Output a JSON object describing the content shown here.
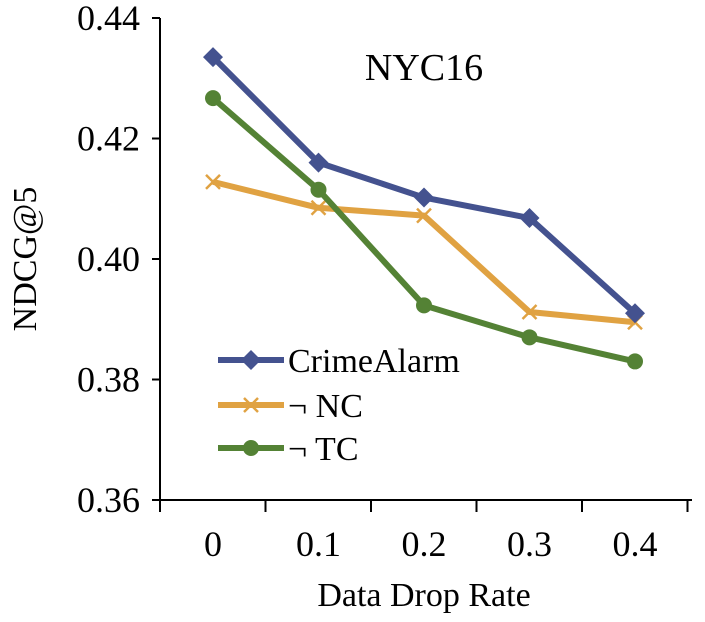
{
  "chart_data": {
    "type": "line",
    "title": "NYC16",
    "xlabel": "Data Drop Rate",
    "ylabel": "NDCG@5",
    "x": [
      0,
      0.1,
      0.2,
      0.3,
      0.4
    ],
    "x_tick_labels": [
      "0",
      "0.1",
      "0.2",
      "0.3",
      "0.4"
    ],
    "ylim": [
      0.36,
      0.44
    ],
    "y_ticks": [
      0.36,
      0.38,
      0.4,
      0.42,
      0.44
    ],
    "y_tick_labels": [
      "0.36",
      "0.38",
      "0.40",
      "0.42",
      "0.44"
    ],
    "grid": false,
    "legend_position": "bottom-left",
    "series": [
      {
        "name": "CrimeAlarm",
        "color": "#44528f",
        "marker": "diamond",
        "values": [
          0.4335,
          0.416,
          0.4102,
          0.4068,
          0.391
        ]
      },
      {
        "name": "¬ NC",
        "color": "#e0a242",
        "marker": "x",
        "values": [
          0.4128,
          0.4085,
          0.4072,
          0.3912,
          0.3895
        ]
      },
      {
        "name": "¬ TC",
        "color": "#548235",
        "marker": "circle",
        "values": [
          0.4267,
          0.4115,
          0.3923,
          0.387,
          0.383
        ]
      }
    ]
  }
}
